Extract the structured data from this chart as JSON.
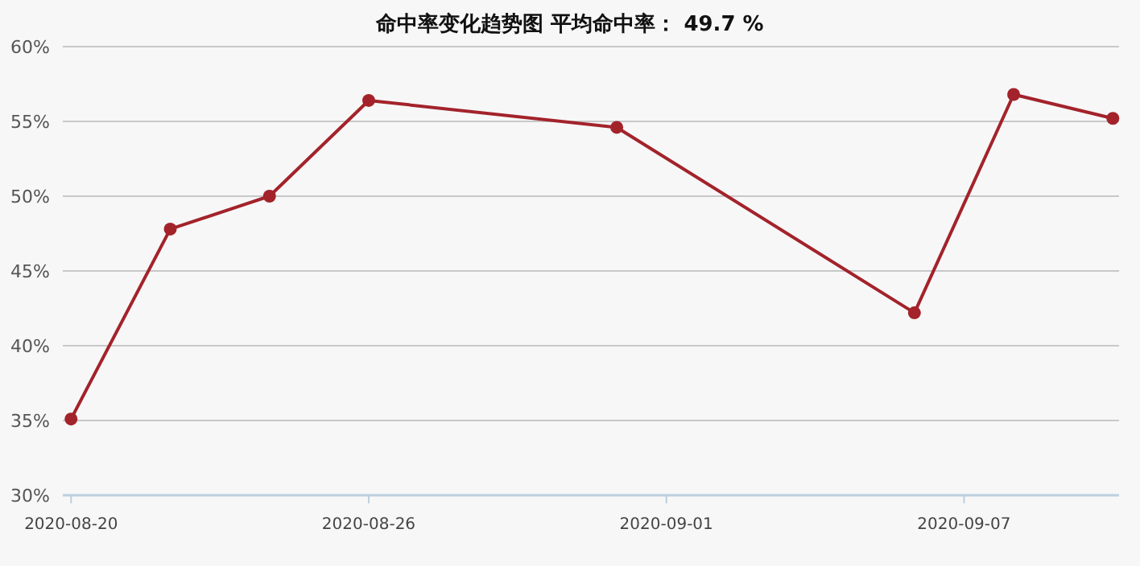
{
  "chart_data": {
    "type": "line",
    "title": "命中率变化趋势图     平均命中率： 49.7 %",
    "x": [
      "2020-08-20",
      "2020-08-22",
      "2020-08-24",
      "2020-08-26",
      "2020-08-31",
      "2020-09-06",
      "2020-09-08",
      "2020-09-10"
    ],
    "values": [
      35.1,
      47.8,
      50.0,
      56.4,
      54.6,
      42.2,
      56.8,
      55.2
    ],
    "color": "#a3232b",
    "marker": "circle",
    "grid": "y",
    "xlim": [
      "2020-08-19T20:00",
      "2020-09-10T03:00"
    ],
    "xticks": [
      "2020-08-20",
      "2020-08-26",
      "2020-09-01",
      "2020-09-07"
    ],
    "ylim": [
      30,
      60
    ],
    "yticks": [
      {
        "value": 30,
        "label": "30%"
      },
      {
        "value": 35,
        "label": "35%"
      },
      {
        "value": 40,
        "label": "40%"
      },
      {
        "value": 45,
        "label": "45%"
      },
      {
        "value": 50,
        "label": "50%"
      },
      {
        "value": 55,
        "label": "55%"
      },
      {
        "value": 60,
        "label": "60%"
      }
    ]
  }
}
